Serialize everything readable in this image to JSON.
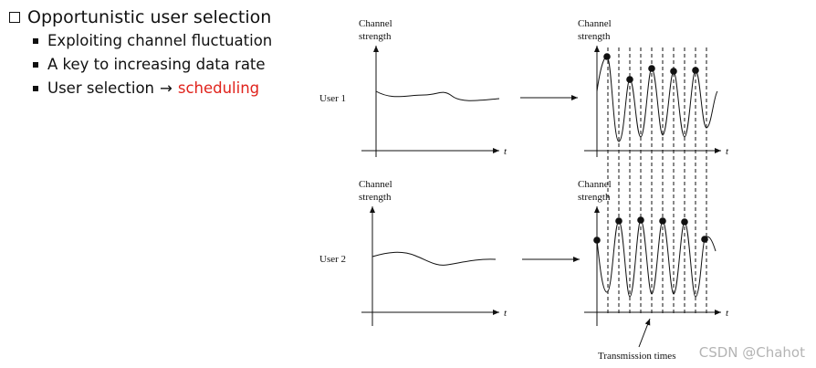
{
  "bullets": {
    "heading": "Opportunistic user selection",
    "items": [
      "Exploiting channel fluctuation",
      "A key to increasing data rate"
    ],
    "item3_prefix": "User selection",
    "item3_arrow": "→",
    "item3_highlight": "scheduling"
  },
  "figure": {
    "axis_y_line1": "Channel",
    "axis_y_line2": "strength",
    "axis_x": "t",
    "user1": "User 1",
    "user2": "User 2",
    "transmission_times": "Transmission times"
  },
  "watermark": "CSDN @Chahot",
  "colors": {
    "highlight": "#e0231c",
    "ink": "#111111",
    "watermark": "#b4b4b4"
  }
}
